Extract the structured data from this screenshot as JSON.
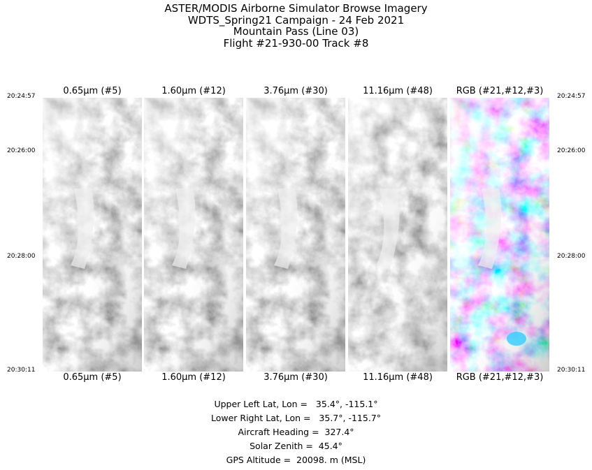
{
  "header": {
    "lines": [
      "ASTER/MODIS Airborne Simulator Browse Imagery",
      "WDTS_Spring21 Campaign - 24 Feb 2021",
      "Mountain Pass (Line 03)",
      "Flight #21-930-00 Track #8"
    ]
  },
  "times_left": [
    "20:24:57",
    "20:26:00",
    "20:28:00",
    "20:30:11"
  ],
  "times_right": [
    "20:24:57",
    "20:26:00",
    "20:28:00",
    "20:30:11"
  ],
  "panels": [
    {
      "label_top": "0.65μm (#5)",
      "label_bottom": "0.65μm (#5)"
    },
    {
      "label_top": "1.60μm (#12)",
      "label_bottom": "1.60μm (#12)"
    },
    {
      "label_top": "3.76μm (#30)",
      "label_bottom": "3.76μm (#30)"
    },
    {
      "label_top": "11.16μm (#48)",
      "label_bottom": "11.16μm (#48)"
    },
    {
      "label_top": "RGB (#21,#12,#3)",
      "label_bottom": "RGB (#21,#12,#3)"
    }
  ],
  "info": [
    "Upper Left Lat, Lon =   35.4°, -115.1°",
    "Lower Right Lat, Lon =   35.7°, -115.7°",
    "Aircraft Heading =  327.4°",
    "Solar Zenith =  45.4°",
    "GPS Altitude =  20098. m (MSL)"
  ]
}
